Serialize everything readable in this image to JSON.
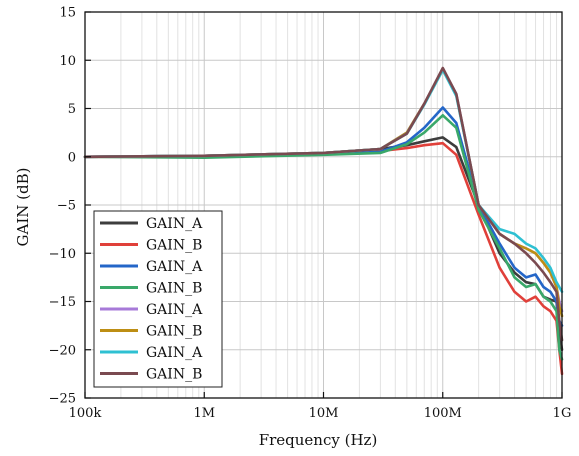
{
  "chart_data": {
    "type": "line",
    "title": "",
    "xlabel": "Frequency (Hz)",
    "ylabel": "GAIN (dB)",
    "x_scale": "log",
    "xlim": [
      100000,
      1000000000
    ],
    "ylim": [
      -25,
      15
    ],
    "x_ticks": [
      {
        "value": 100000,
        "label": "100k"
      },
      {
        "value": 1000000,
        "label": "1M"
      },
      {
        "value": 10000000,
        "label": "10M"
      },
      {
        "value": 100000000,
        "label": "100M"
      },
      {
        "value": 1000000000,
        "label": "1G"
      }
    ],
    "y_ticks": [
      15,
      10,
      5,
      0,
      -5,
      -10,
      -15,
      -20,
      -25
    ],
    "grid": true,
    "legend_position": "bottom-left",
    "x": [
      100000,
      1000000,
      10000000,
      30000000,
      50000000,
      70000000,
      100000000,
      130000000,
      200000000,
      300000000,
      400000000,
      500000000,
      600000000,
      700000000,
      800000000,
      900000000,
      950000000,
      1000000000
    ],
    "series": [
      {
        "name": "GAIN_A",
        "color": "#3d3d3d",
        "values": [
          0,
          0.1,
          0.4,
          0.8,
          1.2,
          1.6,
          2.0,
          1.0,
          -5.0,
          -10.0,
          -12.0,
          -13.0,
          -13.2,
          -14.5,
          -14.8,
          -15.0,
          -18.0,
          -20.0
        ]
      },
      {
        "name": "GAIN_B",
        "color": "#e0403a",
        "values": [
          0,
          0.0,
          0.3,
          0.6,
          0.9,
          1.2,
          1.4,
          0.2,
          -6.0,
          -11.5,
          -14.0,
          -15.0,
          -14.5,
          -15.5,
          -16.0,
          -17.0,
          -20.0,
          -22.5
        ]
      },
      {
        "name": "GAIN_A",
        "color": "#2466c8",
        "values": [
          0,
          0.1,
          0.3,
          0.5,
          1.5,
          3.0,
          5.1,
          3.5,
          -5.0,
          -9.0,
          -11.5,
          -12.5,
          -12.2,
          -13.5,
          -14.0,
          -15.0,
          -17.0,
          -17.5
        ]
      },
      {
        "name": "GAIN_B",
        "color": "#3aa86a",
        "values": [
          0,
          -0.1,
          0.2,
          0.4,
          1.3,
          2.5,
          4.3,
          3.0,
          -5.5,
          -9.5,
          -12.5,
          -13.5,
          -13.2,
          -14.5,
          -15.0,
          -16.0,
          -20.0,
          -21.0
        ]
      },
      {
        "name": "GAIN_A",
        "color": "#a77ad8",
        "values": [
          0,
          0.1,
          0.4,
          0.8,
          2.5,
          5.5,
          9.1,
          6.5,
          -5.0,
          -8.0,
          -9.0,
          -9.5,
          -10.0,
          -11.0,
          -12.0,
          -13.5,
          -15.0,
          -16.0
        ]
      },
      {
        "name": "GAIN_B",
        "color": "#bd8e14",
        "values": [
          0,
          0.1,
          0.4,
          0.8,
          2.5,
          5.5,
          9.0,
          6.4,
          -5.0,
          -8.0,
          -9.0,
          -9.5,
          -10.0,
          -11.0,
          -12.0,
          -13.5,
          -15.5,
          -16.5
        ]
      },
      {
        "name": "GAIN_A",
        "color": "#2ec0d2",
        "values": [
          0,
          0.1,
          0.4,
          0.8,
          2.4,
          5.4,
          9.0,
          6.3,
          -5.0,
          -7.5,
          -8.0,
          -9.0,
          -9.5,
          -10.5,
          -11.5,
          -13.0,
          -13.5,
          -14.0
        ]
      },
      {
        "name": "GAIN_B",
        "color": "#7a4a50",
        "values": [
          0,
          0.1,
          0.4,
          0.8,
          2.4,
          5.5,
          9.2,
          6.5,
          -5.0,
          -8.0,
          -9.0,
          -10.0,
          -11.0,
          -12.0,
          -13.0,
          -14.0,
          -17.0,
          -19.0
        ]
      }
    ]
  }
}
